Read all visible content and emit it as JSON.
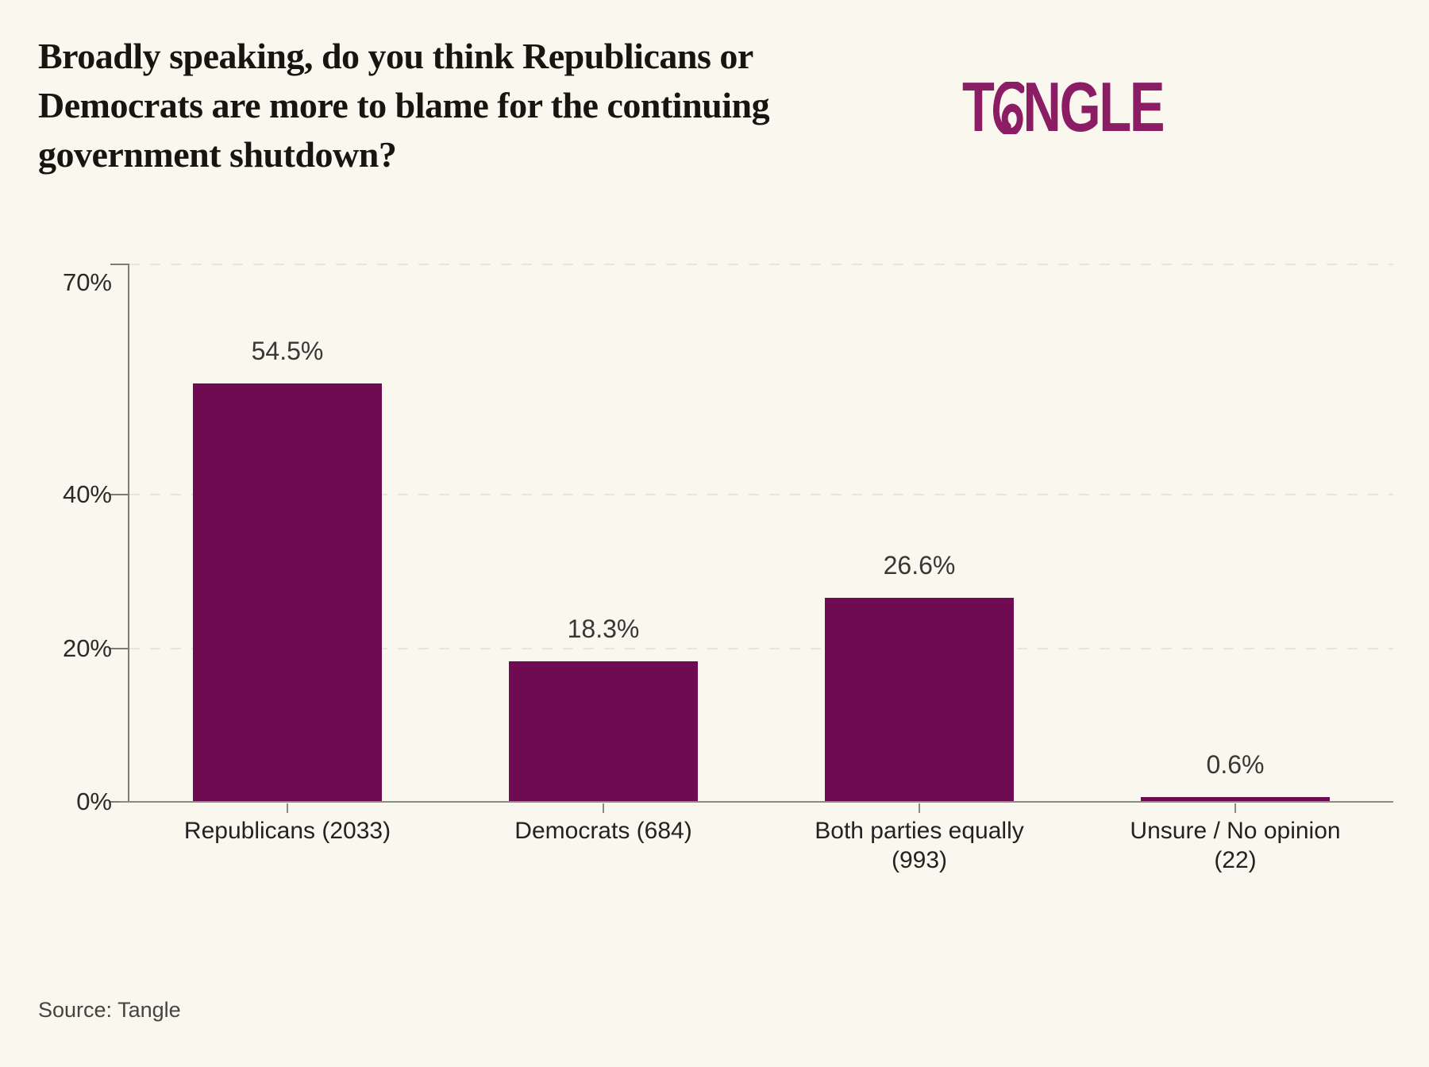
{
  "page": {
    "background": "#F9F7EE"
  },
  "header": {
    "title": "Broadly speaking, do you think Republicans or Democrats are more to blame for the continuing government shutdown?",
    "logo": {
      "first_letter": "T",
      "rest": "NGLE",
      "color": "#8B1D64"
    }
  },
  "source": {
    "label": "Source: Tangle"
  },
  "chart_data": {
    "type": "bar",
    "title": "Broadly speaking, do you think Republicans or Democrats are more to blame for the continuing government shutdown?",
    "categories": [
      "Republicans (2033)",
      "Democrats (684)",
      "Both parties equally (993)",
      "Unsure / No opinion (22)"
    ],
    "values": [
      54.5,
      18.3,
      26.6,
      0.6
    ],
    "value_labels": [
      "54.5%",
      "18.3%",
      "26.6%",
      "0.6%"
    ],
    "counts": [
      2033,
      684,
      993,
      22
    ],
    "xlabel": "",
    "ylabel": "",
    "ylim": [
      0,
      70
    ],
    "yticks": [
      0,
      20,
      40,
      70
    ],
    "ytick_labels": [
      "0%",
      "20%",
      "40%",
      "70%"
    ],
    "grid": "horizontal-dashed",
    "legend": "none",
    "bar_color": "#6F0B53",
    "axis_color": "#7D7C75",
    "grid_color": "#E8E6DA",
    "source": "Source: Tangle"
  }
}
